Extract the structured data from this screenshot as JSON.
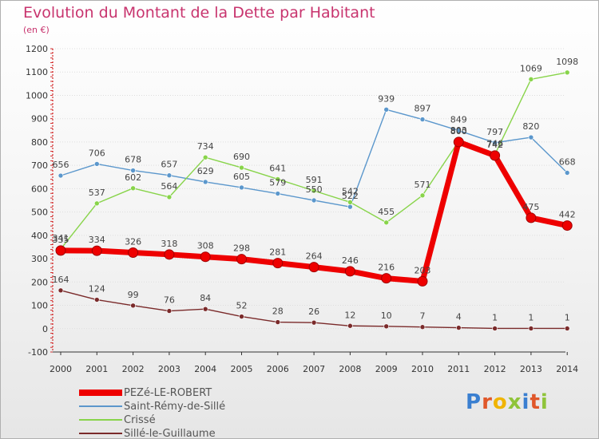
{
  "header": {
    "title": "Evolution du Montant de la Dette par Habitant",
    "unit": "(en €)"
  },
  "brand": {
    "text": "Proxiti",
    "colors": [
      "#3a7fd0",
      "#e0572a",
      "#f0b400",
      "#8fc43a",
      "#3a7fd0",
      "#e0572a",
      "#8fc43a"
    ]
  },
  "chart_data": {
    "type": "line",
    "title": "Evolution du Montant de la Dette par Habitant",
    "subtitle": "(en €)",
    "x": [
      "2000",
      "2001",
      "2002",
      "2003",
      "2004",
      "2005",
      "2006",
      "2007",
      "2008",
      "2009",
      "2010",
      "2011",
      "2012",
      "2013",
      "2014"
    ],
    "ylim": [
      -100,
      1200
    ],
    "yticks": [
      -100,
      0,
      100,
      200,
      300,
      400,
      500,
      600,
      700,
      800,
      900,
      1000,
      1100,
      1200
    ],
    "grid": "horizontal",
    "legend": "bottom-left",
    "series": [
      {
        "name": "PEZé-LE-ROBERT",
        "color": "#ee0000",
        "values": [
          335,
          334,
          326,
          318,
          308,
          298,
          281,
          264,
          246,
          216,
          203,
          800,
          742,
          475,
          442
        ]
      },
      {
        "name": "Saint-Rémy-de-Sillé",
        "color": "#5b97cc",
        "values": [
          656,
          706,
          678,
          657,
          629,
          605,
          579,
          550,
          522,
          939,
          897,
          849,
          797,
          820,
          668
        ]
      },
      {
        "name": "Crissé",
        "color": "#88d44a",
        "values": [
          341,
          537,
          602,
          564,
          734,
          690,
          641,
          591,
          542,
          455,
          571,
          803,
          746,
          1069,
          1098
        ]
      },
      {
        "name": "Sillé-le-Guillaume",
        "color": "#7a2a2a",
        "values": [
          164,
          124,
          99,
          76,
          84,
          52,
          28,
          26,
          12,
          10,
          7,
          4,
          1,
          1,
          1
        ]
      }
    ]
  }
}
